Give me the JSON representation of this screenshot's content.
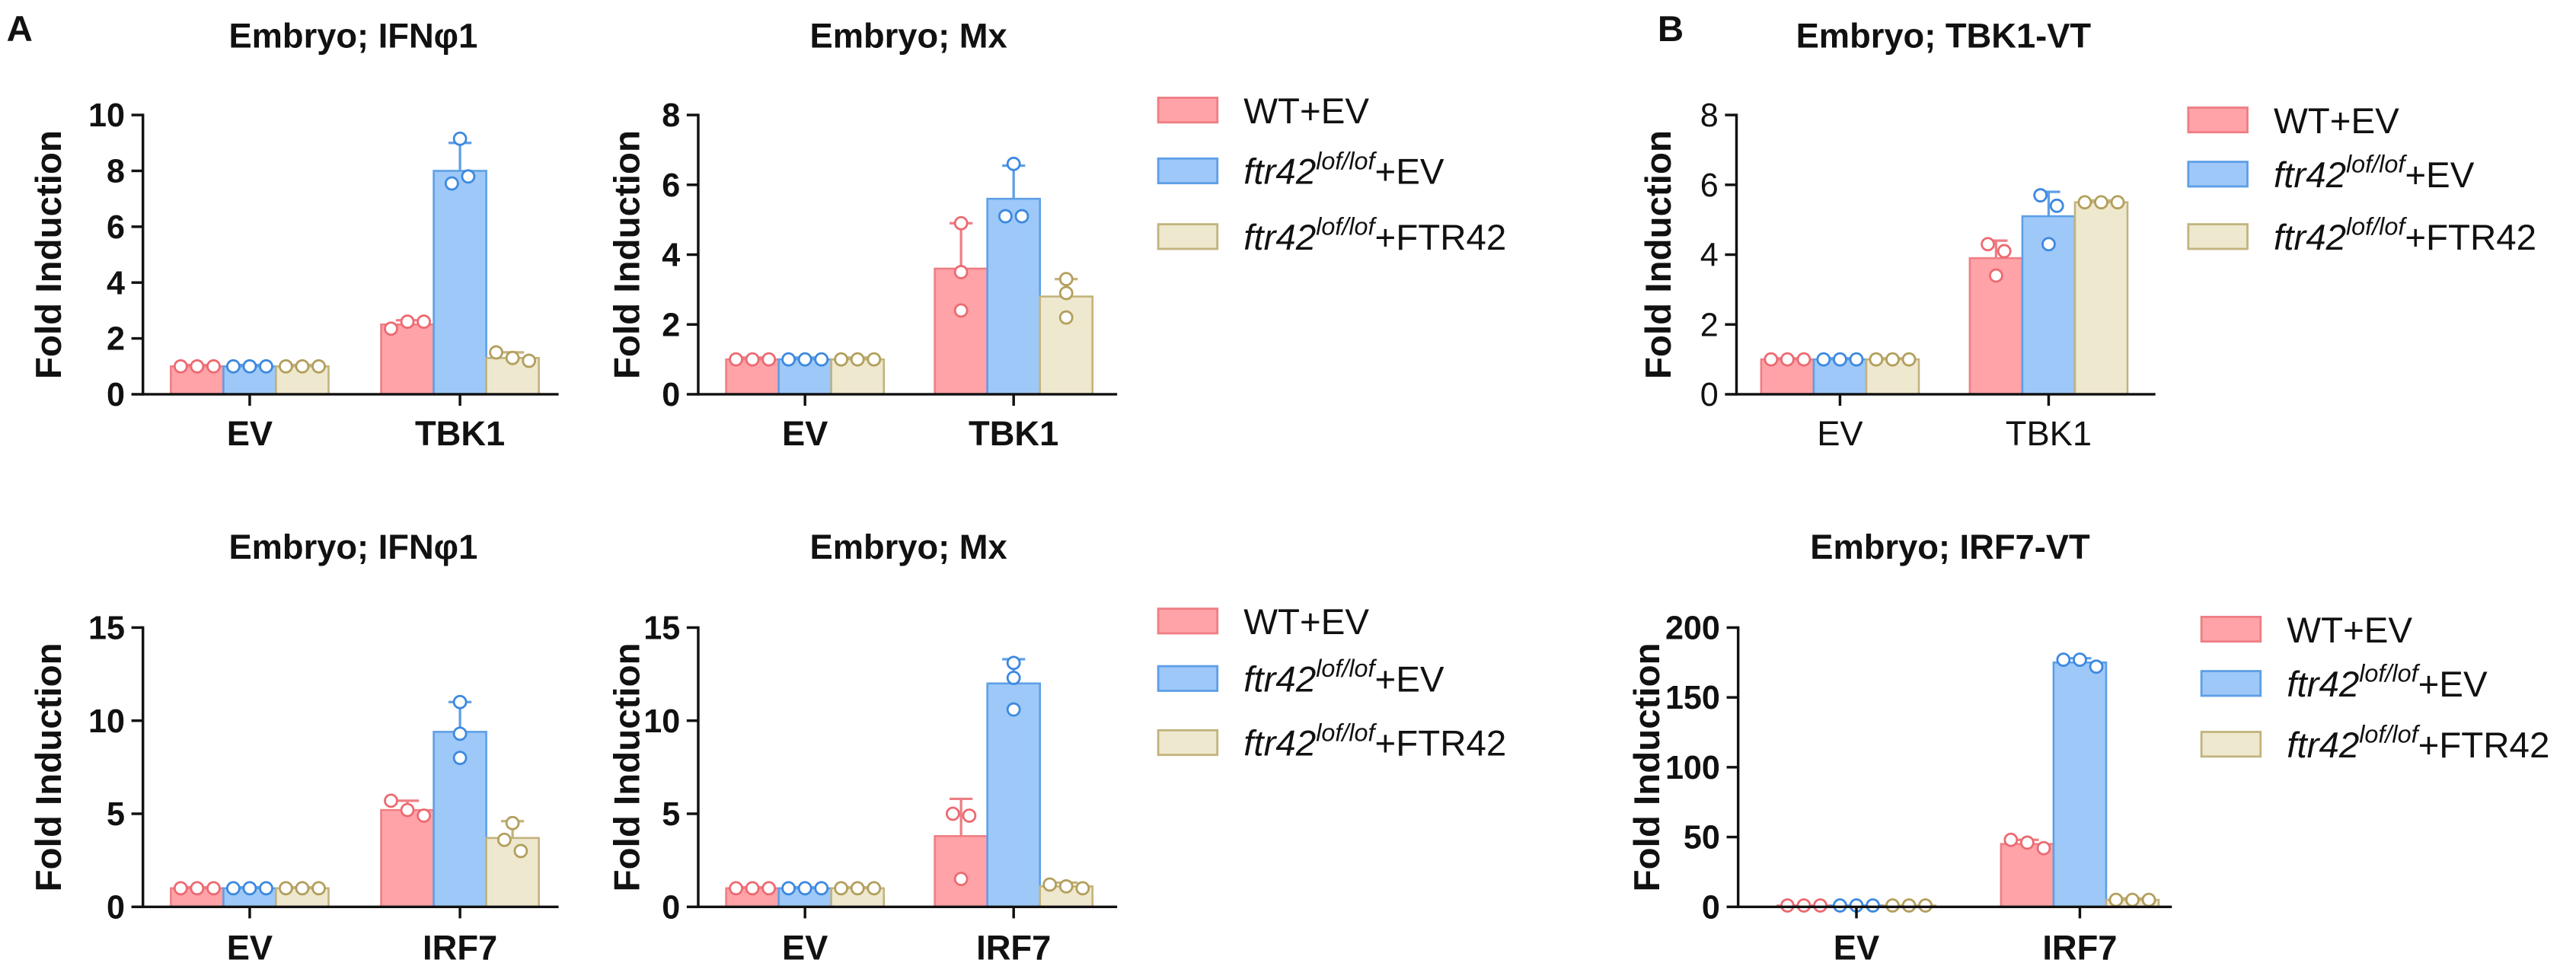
{
  "panel_labels": {
    "a": "A",
    "b": "B"
  },
  "axis_color": "#111111",
  "series_colors": [
    {
      "fill": "#FFA3A8",
      "stroke": "#EE7E84",
      "point": "#EC6A71"
    },
    {
      "fill": "#9DC8F8",
      "stroke": "#5E9FE6",
      "point": "#3C89E0"
    },
    {
      "fill": "#EEE8CE",
      "stroke": "#C2B37E",
      "point": "#B39F5C"
    }
  ],
  "chart_data": [
    {
      "type": "bar",
      "title": "Embryo; IFNφ1",
      "ylabel": "Fold Induction",
      "ylim": [
        0,
        10
      ],
      "yticks": [
        0,
        2,
        4,
        6,
        8,
        10
      ],
      "categories": [
        "EV",
        "TBK1"
      ],
      "series": [
        {
          "values": [
            1.0,
            2.5
          ],
          "error_top": [
            1.05,
            2.65
          ],
          "points": [
            [
              1.0,
              1.0,
              1.0
            ],
            [
              2.35,
              2.6,
              2.6
            ]
          ]
        },
        {
          "values": [
            1.0,
            8.0
          ],
          "error_top": [
            1.05,
            9.0
          ],
          "points": [
            [
              1.0,
              1.0,
              1.0
            ],
            [
              9.15,
              7.55,
              7.8
            ]
          ]
        },
        {
          "values": [
            1.0,
            1.3
          ],
          "error_top": [
            1.05,
            1.5
          ],
          "points": [
            [
              1.0,
              1.0,
              1.0
            ],
            [
              1.5,
              1.3,
              1.2
            ]
          ]
        }
      ]
    },
    {
      "type": "bar",
      "title": "Embryo; Mx",
      "ylabel": "Fold Induction",
      "ylim": [
        0,
        8
      ],
      "yticks": [
        0,
        2,
        4,
        6,
        8
      ],
      "categories": [
        "EV",
        "TBK1"
      ],
      "series": [
        {
          "values": [
            1.0,
            3.6
          ],
          "error_top": [
            1.05,
            4.9
          ],
          "points": [
            [
              1.0,
              1.0,
              1.0
            ],
            [
              4.9,
              3.5,
              2.4
            ]
          ]
        },
        {
          "values": [
            1.0,
            5.6
          ],
          "error_top": [
            1.05,
            6.55
          ],
          "points": [
            [
              1.0,
              1.0,
              1.0
            ],
            [
              6.6,
              5.1,
              5.1
            ]
          ]
        },
        {
          "values": [
            1.0,
            2.8
          ],
          "error_top": [
            1.05,
            3.3
          ],
          "points": [
            [
              1.0,
              1.0,
              1.0
            ],
            [
              3.3,
              2.9,
              2.2
            ]
          ]
        }
      ],
      "legend": [
        {
          "text": "WT+EV"
        },
        {
          "italic": "ftr42",
          "sup": "lof/lof",
          "text": "+EV"
        },
        {
          "italic": "ftr42",
          "sup": "lof/lof",
          "text": "+FTR42"
        }
      ]
    },
    {
      "type": "bar",
      "title": "Embryo; TBK1-VT",
      "ylabel": "Fold Induction",
      "ylim": [
        0,
        8
      ],
      "yticks": [
        0,
        2,
        4,
        6,
        8
      ],
      "categories": [
        "EV",
        "TBK1"
      ],
      "series": [
        {
          "values": [
            1.0,
            3.9
          ],
          "error_top": [
            1.03,
            4.4
          ],
          "points": [
            [
              1.0,
              1.0,
              1.0
            ],
            [
              4.3,
              4.1,
              3.4
            ]
          ]
        },
        {
          "values": [
            1.0,
            5.1
          ],
          "error_top": [
            1.03,
            5.8
          ],
          "points": [
            [
              1.0,
              1.0,
              1.0
            ],
            [
              5.7,
              5.4,
              4.3
            ]
          ]
        },
        {
          "values": [
            1.0,
            5.5
          ],
          "error_top": [
            1.03,
            5.55
          ],
          "points": [
            [
              1.0,
              1.0,
              1.0
            ],
            [
              5.5,
              5.5,
              5.5
            ]
          ]
        }
      ],
      "legend": [
        {
          "text": "WT+EV"
        },
        {
          "italic": "ftr42",
          "sup": "lof/lof",
          "text": "+EV"
        },
        {
          "italic": "ftr42",
          "sup": "lof/lof",
          "text": "+FTR42"
        }
      ]
    },
    {
      "type": "bar",
      "title": "Embryo; IFNφ1",
      "ylabel": "Fold Induction",
      "ylim": [
        0,
        15
      ],
      "yticks": [
        0,
        5,
        10,
        15
      ],
      "categories": [
        "EV",
        "IRF7"
      ],
      "series": [
        {
          "values": [
            1.0,
            5.2
          ],
          "error_top": [
            1.05,
            5.7
          ],
          "points": [
            [
              1.0,
              1.0,
              1.0
            ],
            [
              5.7,
              5.2,
              4.9
            ]
          ]
        },
        {
          "values": [
            1.0,
            9.4
          ],
          "error_top": [
            1.05,
            11.0
          ],
          "points": [
            [
              1.0,
              1.0,
              1.0
            ],
            [
              11.0,
              9.3,
              8.0
            ]
          ]
        },
        {
          "values": [
            1.0,
            3.7
          ],
          "error_top": [
            1.05,
            4.6
          ],
          "points": [
            [
              1.0,
              1.0,
              1.0
            ],
            [
              4.5,
              3.6,
              3.0
            ]
          ]
        }
      ]
    },
    {
      "type": "bar",
      "title": "Embryo; Mx",
      "ylabel": "Fold Induction",
      "ylim": [
        0,
        15
      ],
      "yticks": [
        0,
        5,
        10,
        15
      ],
      "categories": [
        "EV",
        "IRF7"
      ],
      "series": [
        {
          "values": [
            1.0,
            3.8
          ],
          "error_top": [
            1.05,
            5.8
          ],
          "points": [
            [
              1.0,
              1.0,
              1.0
            ],
            [
              5.0,
              4.9,
              1.5
            ]
          ]
        },
        {
          "values": [
            1.0,
            12.0
          ],
          "error_top": [
            1.05,
            13.3
          ],
          "points": [
            [
              1.0,
              1.0,
              1.0
            ],
            [
              13.1,
              12.3,
              10.6
            ]
          ]
        },
        {
          "values": [
            1.0,
            1.1
          ],
          "error_top": [
            1.05,
            1.3
          ],
          "points": [
            [
              1.0,
              1.0,
              1.0
            ],
            [
              1.2,
              1.1,
              1.0
            ]
          ]
        }
      ],
      "legend": [
        {
          "text": "WT+EV"
        },
        {
          "italic": "ftr42",
          "sup": "lof/lof",
          "text": "+EV"
        },
        {
          "italic": "ftr42",
          "sup": "lof/lof",
          "text": "+FTR42"
        }
      ]
    },
    {
      "type": "bar",
      "title": "Embryo; IRF7-VT",
      "ylabel": "Fold Induction",
      "ylim": [
        0,
        200
      ],
      "yticks": [
        0,
        50,
        100,
        150,
        200
      ],
      "categories": [
        "EV",
        "IRF7"
      ],
      "series": [
        {
          "values": [
            1.0,
            45.0
          ],
          "error_top": [
            1.0,
            48.0
          ],
          "points": [
            [
              1.0,
              1.0,
              1.0
            ],
            [
              48.0,
              46.0,
              42.0
            ]
          ]
        },
        {
          "values": [
            1.0,
            175.0
          ],
          "error_top": [
            1.0,
            178.0
          ],
          "points": [
            [
              1.0,
              1.0,
              1.0
            ],
            [
              177.0,
              177.0,
              172.0
            ]
          ]
        },
        {
          "values": [
            1.0,
            5.0
          ],
          "error_top": [
            1.0,
            6.0
          ],
          "points": [
            [
              1.0,
              1.0,
              1.0
            ],
            [
              5.0,
              5.0,
              5.0
            ]
          ]
        }
      ],
      "legend": [
        {
          "text": "WT+EV"
        },
        {
          "italic": "ftr42",
          "sup": "lof/lof",
          "text": "+EV"
        },
        {
          "italic": "ftr42",
          "sup": "lof/lof",
          "text": "+FTR42"
        }
      ]
    }
  ]
}
